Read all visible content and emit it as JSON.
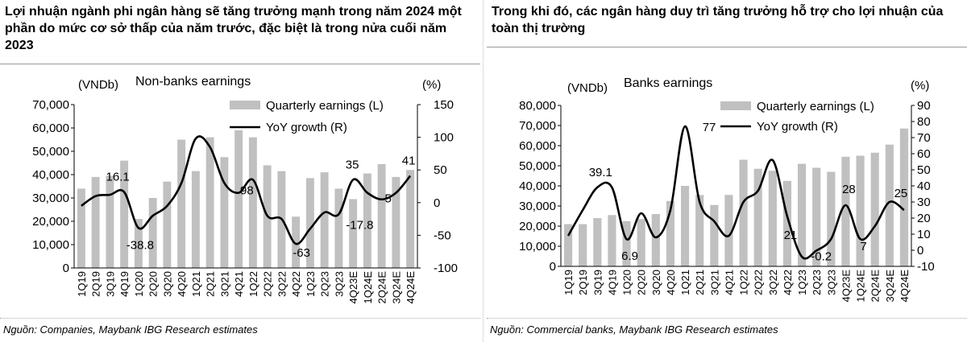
{
  "left": {
    "title": "Lợi nhuận ngành phi ngân hàng sẽ tăng trưởng mạnh trong năm 2024 một phần do mức cơ sở thấp của năm trước, đặc biệt là trong nửa cuối năm 2023",
    "source": "Nguồn: Companies, Maybank IBG Research estimates"
  },
  "right": {
    "title": "Trong khi đó, các ngân hàng duy trì tăng trưởng hỗ trợ cho lợi nhuận của toàn thị trường",
    "source": "Nguồn: Commercial banks, Maybank IBG Research estimates"
  },
  "chart_data": [
    {
      "type": "bar",
      "title": "Non-banks earnings",
      "ylabel_left": "(VNDb)",
      "ylabel_right": "(%)",
      "categories": [
        "1Q19",
        "2Q19",
        "3Q19",
        "4Q19",
        "1Q20",
        "2Q20",
        "3Q20",
        "4Q20",
        "1Q21",
        "2Q21",
        "3Q21",
        "4Q21",
        "1Q22",
        "2Q22",
        "3Q22",
        "4Q22",
        "1Q23",
        "2Q23",
        "3Q23",
        "4Q23E",
        "1Q24E",
        "2Q24E",
        "3Q24E",
        "4Q24E"
      ],
      "ylim_left": [
        0,
        70000
      ],
      "yticks_left": [
        "0",
        "10,000",
        "20,000",
        "30,000",
        "40,000",
        "50,000",
        "60,000",
        "70,000"
      ],
      "ylim_right": [
        -100,
        150
      ],
      "yticks_right": [
        "-100",
        "-50",
        "0",
        "50",
        "100",
        "150"
      ],
      "series": [
        {
          "name": "Quarterly earnings (L)",
          "axis": "left",
          "kind": "bar",
          "color": "#c0c0c0",
          "values": [
            34000,
            39000,
            39500,
            46000,
            21000,
            30000,
            37000,
            55000,
            41500,
            56000,
            47500,
            59000,
            56000,
            44000,
            41500,
            22000,
            38500,
            41000,
            34000,
            29500,
            40500,
            44500,
            39000,
            42000
          ]
        },
        {
          "name": "YoY growth (R)",
          "axis": "right",
          "kind": "line",
          "color": "#000000",
          "values": [
            -5,
            10,
            12,
            16.1,
            -38.8,
            -20,
            -5,
            30,
            98,
            85,
            30,
            15,
            35,
            -20,
            -25,
            -63,
            -40,
            -15,
            -17.8,
            35,
            15,
            5,
            15,
            41
          ]
        }
      ],
      "labels": [
        {
          "text": "16.1",
          "series": 1,
          "index": 3
        },
        {
          "text": "-38.8",
          "series": 1,
          "index": 4
        },
        {
          "text": "98",
          "series": 1,
          "index": 10
        },
        {
          "text": "-63",
          "series": 1,
          "index": 15
        },
        {
          "text": "-17.8",
          "series": 1,
          "index": 18
        },
        {
          "text": "35",
          "series": 1,
          "index": 19
        },
        {
          "text": "5",
          "series": 1,
          "index": 21
        },
        {
          "text": "41",
          "series": 1,
          "index": 23
        }
      ],
      "legend": "top-right"
    },
    {
      "type": "bar",
      "title": "Banks earnings",
      "ylabel_left": "(VNDb)",
      "ylabel_right": "(%)",
      "categories": [
        "1Q19",
        "2Q19",
        "3Q19",
        "4Q19",
        "1Q20",
        "2Q20",
        "3Q20",
        "4Q20",
        "1Q21",
        "2Q21",
        "3Q21",
        "4Q21",
        "1Q22",
        "2Q22",
        "3Q22",
        "4Q22",
        "1Q23",
        "2Q23",
        "3Q23",
        "4Q23E",
        "1Q24E",
        "2Q24E",
        "3Q24E",
        "4Q24E"
      ],
      "ylim_left": [
        0,
        80000
      ],
      "yticks_left": [
        "0",
        "10,000",
        "20,000",
        "30,000",
        "40,000",
        "50,000",
        "60,000",
        "70,000",
        "80,000"
      ],
      "ylim_right": [
        -10,
        90
      ],
      "yticks_right": [
        "-10",
        "0",
        "10",
        "20",
        "30",
        "40",
        "50",
        "60",
        "70",
        "80",
        "90"
      ],
      "series": [
        {
          "name": "Quarterly earnings (L)",
          "axis": "left",
          "kind": "bar",
          "color": "#c0c0c0",
          "values": [
            21000,
            21000,
            24000,
            25500,
            22500,
            23500,
            26000,
            32500,
            40000,
            35500,
            30500,
            35500,
            53000,
            48500,
            47500,
            42500,
            51000,
            49000,
            47000,
            54500,
            55000,
            56500,
            60500,
            68500
          ]
        },
        {
          "name": "YoY growth (R)",
          "axis": "right",
          "kind": "line",
          "color": "#000000",
          "values": [
            9,
            25,
            39.1,
            39,
            6.9,
            23,
            8,
            25,
            77,
            30,
            18,
            9,
            30,
            37,
            56,
            21,
            -4,
            -0.2,
            7,
            28,
            7,
            15,
            30,
            25
          ]
        }
      ],
      "labels": [
        {
          "text": "39.1",
          "series": 1,
          "index": 2
        },
        {
          "text": "6.9",
          "series": 1,
          "index": 4
        },
        {
          "text": "77",
          "series": 1,
          "index": 8
        },
        {
          "text": "21",
          "series": 1,
          "index": 15
        },
        {
          "text": "-0.2",
          "series": 1,
          "index": 17
        },
        {
          "text": "28",
          "series": 1,
          "index": 19
        },
        {
          "text": "7",
          "series": 1,
          "index": 20
        },
        {
          "text": "25",
          "series": 1,
          "index": 23
        }
      ],
      "legend": "top-right"
    }
  ]
}
